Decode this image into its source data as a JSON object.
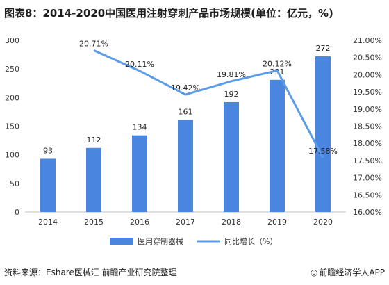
{
  "chart_data": {
    "type": "bar",
    "title": "图表8：2014-2020中国医用注射穿刺产品市场规模(单位：亿元，%)",
    "categories": [
      "2014",
      "2015",
      "2016",
      "2017",
      "2018",
      "2019",
      "2020"
    ],
    "series": [
      {
        "name": "医用穿制器械",
        "type": "bar",
        "axis": "left",
        "color": "#4a86e0",
        "values": [
          93,
          112,
          134,
          161,
          192,
          231,
          272
        ],
        "labels": [
          "93",
          "112",
          "134",
          "161",
          "192",
          "231",
          "272"
        ]
      },
      {
        "name": "同比增长（%）",
        "type": "line",
        "axis": "right",
        "color": "#5b9ce8",
        "values": [
          null,
          20.71,
          20.11,
          19.42,
          19.81,
          20.12,
          17.58
        ],
        "labels": [
          "",
          "20.71%",
          "20.11%",
          "19.42%",
          "19.81%",
          "20.12%",
          "17.58%"
        ]
      }
    ],
    "y_left": {
      "min": 0,
      "max": 300,
      "ticks": [
        "0",
        "50",
        "100",
        "150",
        "200",
        "250",
        "300"
      ]
    },
    "y_right": {
      "min": 16,
      "max": 21,
      "ticks": [
        "16.00%",
        "16.50%",
        "17.00%",
        "17.50%",
        "18.00%",
        "18.50%",
        "19.00%",
        "19.50%",
        "20.00%",
        "20.50%",
        "21.00%"
      ]
    },
    "grid": false,
    "legend": "bottom"
  },
  "footer": {
    "source": "资料来源：Eshare医械汇 前瞻产业研究院整理",
    "brand": "前瞻经济学人APP",
    "brand_icon": "swirl-logo-icon"
  }
}
